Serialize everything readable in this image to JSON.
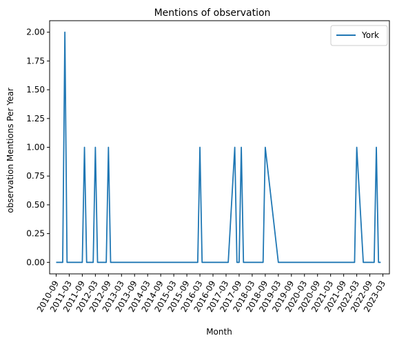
{
  "chart_data": {
    "type": "line",
    "title": "Mentions of observation",
    "xlabel": "Month",
    "ylabel": "observation Mentions Per Year",
    "grid": false,
    "legend": "upper right",
    "ylim": [
      -0.1,
      2.1
    ],
    "xlim": [
      "2010-06",
      "2023-06"
    ],
    "x_ticks": [
      "2010-09",
      "2011-03",
      "2011-09",
      "2012-03",
      "2012-09",
      "2013-03",
      "2013-09",
      "2014-03",
      "2014-09",
      "2015-03",
      "2015-09",
      "2016-03",
      "2016-09",
      "2017-03",
      "2017-09",
      "2018-03",
      "2018-09",
      "2019-03",
      "2019-09",
      "2020-03",
      "2020-09",
      "2021-03",
      "2021-09",
      "2022-03",
      "2022-09",
      "2023-03"
    ],
    "y_ticks": [
      {
        "value": 0.0,
        "label": "0.00"
      },
      {
        "value": 0.25,
        "label": "0.25"
      },
      {
        "value": 0.5,
        "label": "0.50"
      },
      {
        "value": 0.75,
        "label": "0.75"
      },
      {
        "value": 1.0,
        "label": "1.00"
      },
      {
        "value": 1.25,
        "label": "1.25"
      },
      {
        "value": 1.5,
        "label": "1.50"
      },
      {
        "value": 1.75,
        "label": "1.75"
      },
      {
        "value": 2.0,
        "label": "2.00"
      }
    ],
    "series": [
      {
        "name": "York",
        "color": "#1f77b4",
        "points": [
          {
            "x": "2010-09",
            "y": 0
          },
          {
            "x": "2010-12",
            "y": 0
          },
          {
            "x": "2011-01",
            "y": 2
          },
          {
            "x": "2011-02",
            "y": 0
          },
          {
            "x": "2011-09",
            "y": 0
          },
          {
            "x": "2011-10",
            "y": 1
          },
          {
            "x": "2011-11",
            "y": 0
          },
          {
            "x": "2012-02",
            "y": 0
          },
          {
            "x": "2012-03",
            "y": 1
          },
          {
            "x": "2012-04",
            "y": 0
          },
          {
            "x": "2012-08",
            "y": 0
          },
          {
            "x": "2012-09",
            "y": 1
          },
          {
            "x": "2012-10",
            "y": 0
          },
          {
            "x": "2016-02",
            "y": 0
          },
          {
            "x": "2016-03",
            "y": 1
          },
          {
            "x": "2016-04",
            "y": 0
          },
          {
            "x": "2017-04",
            "y": 0
          },
          {
            "x": "2017-07",
            "y": 1
          },
          {
            "x": "2017-08",
            "y": 0
          },
          {
            "x": "2017-09",
            "y": 0
          },
          {
            "x": "2017-10",
            "y": 1
          },
          {
            "x": "2017-11",
            "y": 0
          },
          {
            "x": "2018-08",
            "y": 0
          },
          {
            "x": "2018-09",
            "y": 1
          },
          {
            "x": "2019-03",
            "y": 0
          },
          {
            "x": "2022-02",
            "y": 0
          },
          {
            "x": "2022-03",
            "y": 1
          },
          {
            "x": "2022-06",
            "y": 0
          },
          {
            "x": "2022-11",
            "y": 0
          },
          {
            "x": "2022-12",
            "y": 1
          },
          {
            "x": "2023-01",
            "y": 0
          },
          {
            "x": "2023-02",
            "y": 0
          }
        ]
      }
    ]
  }
}
